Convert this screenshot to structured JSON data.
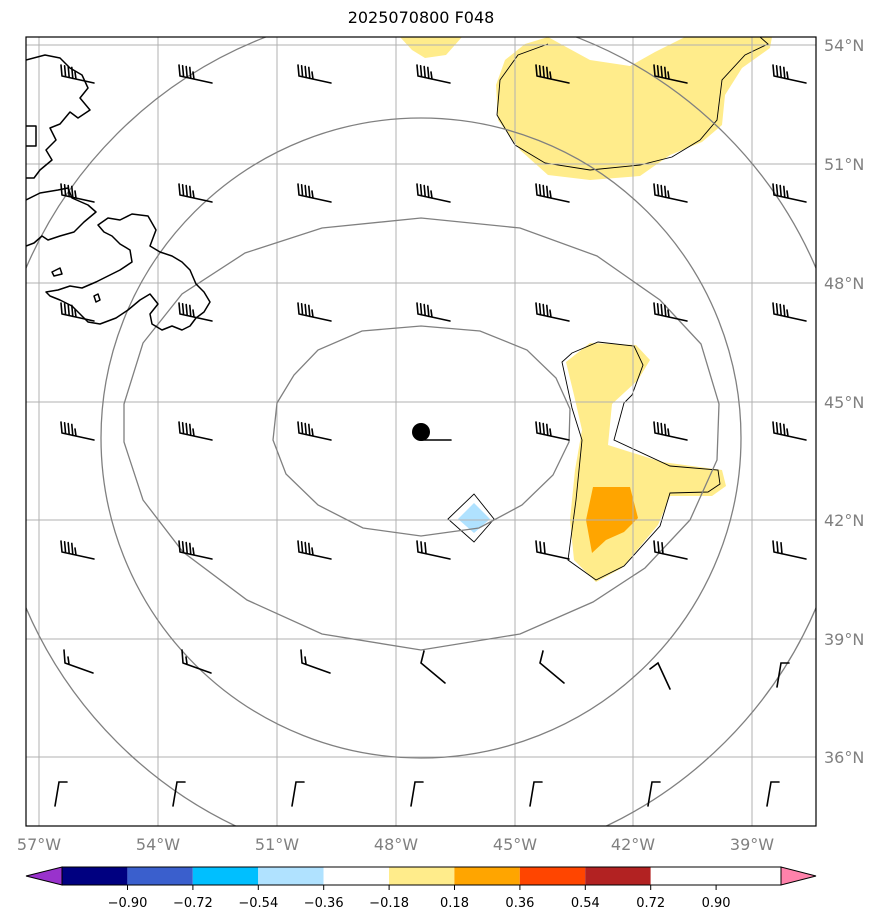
{
  "title": "2025070800 F048",
  "lon_labels": [
    "57°W",
    "54°W",
    "51°W",
    "48°W",
    "45°W",
    "42°W",
    "39°W"
  ],
  "lat_labels": [
    "54°N",
    "51°N",
    "48°N",
    "45°N",
    "42°N",
    "39°N",
    "36°N"
  ],
  "colorbar": {
    "ticks": [
      "−0.90",
      "−0.72",
      "−0.54",
      "−0.36",
      "−0.18",
      "0.18",
      "0.36",
      "0.54",
      "0.72",
      "0.90"
    ],
    "colors": [
      "#9932cc",
      "#000080",
      "#3a5fcd",
      "#00bfff",
      "#b0e2ff",
      "#ffffff",
      "#ffec8b",
      "#ffa500",
      "#ff4500",
      "#b22222",
      "#ff82ab"
    ]
  },
  "map": {
    "lon_range": [
      -57.3,
      -37.1
    ],
    "lat_range": [
      34.5,
      54.2
    ],
    "center": {
      "lon": -47.1,
      "lat": 44.2
    },
    "shade_colors": {
      "light": "#ffec8b",
      "orange": "#ffa500",
      "lightblue": "#b0e2ff"
    },
    "range_rings": "concentric circles around the storm center",
    "wind_barbs": "grid of wind barbs every 3 degrees"
  }
}
